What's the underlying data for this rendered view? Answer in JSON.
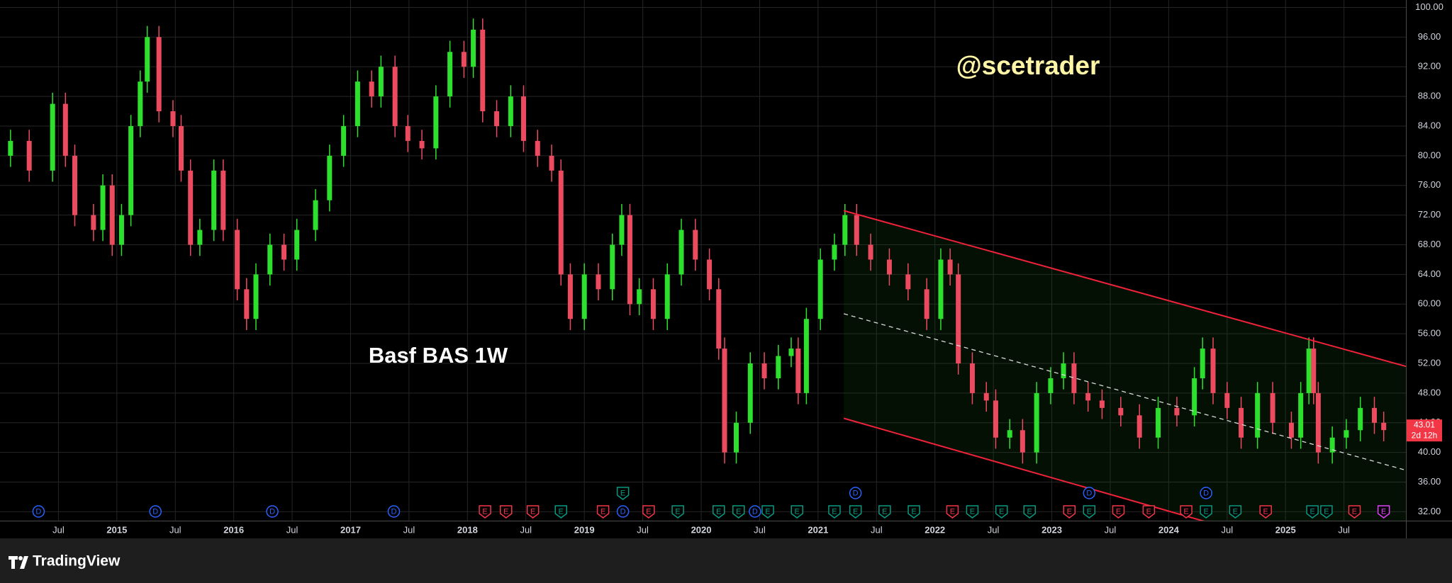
{
  "chart_data": {
    "type": "candlestick",
    "title": "Basf BAS 1W",
    "watermark": "@scetrader",
    "x": [
      2014.09,
      2014.25,
      2014.45,
      2014.56,
      2014.64,
      2014.8,
      2014.88,
      2014.96,
      2015.04,
      2015.12,
      2015.2,
      2015.26,
      2015.36,
      2015.48,
      2015.55,
      2015.63,
      2015.71,
      2015.83,
      2015.91,
      2016.03,
      2016.11,
      2016.19,
      2016.31,
      2016.43,
      2016.54,
      2016.7,
      2016.82,
      2016.94,
      2017.06,
      2017.18,
      2017.26,
      2017.38,
      2017.49,
      2017.61,
      2017.73,
      2017.85,
      2017.97,
      2018.05,
      2018.13,
      2018.25,
      2018.37,
      2018.48,
      2018.6,
      2018.72,
      2018.8,
      2018.88,
      2019.0,
      2019.12,
      2019.24,
      2019.32,
      2019.39,
      2019.47,
      2019.59,
      2019.71,
      2019.83,
      2019.95,
      2020.07,
      2020.15,
      2020.2,
      2020.3,
      2020.42,
      2020.54,
      2020.66,
      2020.77,
      2020.83,
      2020.9,
      2021.02,
      2021.14,
      2021.23,
      2021.33,
      2021.45,
      2021.61,
      2021.77,
      2021.93,
      2022.05,
      2022.13,
      2022.2,
      2022.32,
      2022.44,
      2022.52,
      2022.64,
      2022.75,
      2022.87,
      2022.99,
      2023.1,
      2023.19,
      2023.31,
      2023.43,
      2023.59,
      2023.75,
      2023.91,
      2024.07,
      2024.22,
      2024.29,
      2024.38,
      2024.5,
      2024.62,
      2024.76,
      2024.89,
      2025.05,
      2025.13,
      2025.2,
      2025.24,
      2025.28,
      2025.4,
      2025.52,
      2025.64,
      2025.76,
      2025.84
    ],
    "open": [
      80,
      82,
      78,
      87,
      80,
      72,
      70,
      76,
      68,
      72,
      84,
      90,
      96,
      86,
      84,
      78,
      68,
      70,
      78,
      70,
      62,
      58,
      64,
      68,
      66,
      70,
      74,
      80,
      84,
      90,
      88,
      92,
      84,
      82,
      81,
      88,
      94,
      92,
      97,
      86,
      84,
      88,
      82,
      80,
      78,
      64,
      58,
      64,
      62,
      68,
      72,
      60,
      62,
      58,
      64,
      70,
      66,
      62,
      54,
      40,
      44,
      52,
      50,
      53,
      54,
      48,
      58,
      66,
      68,
      72,
      68,
      66,
      64,
      62,
      58,
      66,
      64,
      52,
      48,
      47,
      42,
      43,
      40,
      48,
      50,
      52,
      48,
      47,
      46,
      45,
      42,
      46,
      45,
      50,
      54,
      48,
      46,
      42,
      48,
      44,
      42,
      48,
      54,
      48,
      40,
      42,
      43,
      46,
      44
    ],
    "high": [
      83.5,
      83.5,
      88.5,
      88.5,
      81.5,
      73.5,
      77.5,
      77.5,
      73.5,
      85.5,
      91.5,
      97.5,
      97.5,
      87.5,
      85.5,
      79.5,
      71.5,
      79.5,
      79.5,
      71.5,
      63.5,
      65.5,
      69.5,
      69.5,
      71.5,
      75.5,
      81.5,
      85.5,
      91.5,
      91.5,
      93.5,
      93.5,
      85.5,
      83.5,
      89.5,
      95.5,
      95.5,
      98.5,
      98.5,
      87.5,
      89.5,
      89.5,
      83.5,
      81.5,
      79.5,
      65.5,
      65.5,
      65.5,
      69.5,
      73.5,
      73.5,
      63.5,
      63.5,
      65.5,
      71.5,
      71.5,
      67.5,
      63.5,
      55.5,
      45.5,
      53.5,
      53.5,
      54.5,
      55.5,
      55.5,
      59.5,
      67.5,
      69.5,
      73.5,
      73.5,
      69.5,
      67.5,
      65.5,
      63.5,
      67.5,
      67.5,
      65.5,
      53.5,
      49.5,
      48.5,
      44.5,
      44.5,
      49.5,
      51.5,
      53.5,
      53.5,
      49.5,
      48.5,
      47.5,
      46.5,
      47.5,
      47.5,
      51.5,
      55.5,
      55.5,
      49.5,
      47.5,
      49.5,
      49.5,
      45.5,
      49.5,
      55.5,
      55.5,
      49.5,
      43.5,
      44.5,
      47.5,
      47.5,
      45.5
    ],
    "low": [
      78.5,
      76.5,
      76.5,
      78.5,
      70.5,
      68.5,
      68.5,
      66.5,
      66.5,
      70.5,
      82.5,
      88.5,
      84.5,
      82.5,
      76.5,
      66.5,
      66.5,
      68.5,
      68.5,
      60.5,
      56.5,
      56.5,
      62.5,
      64.5,
      64.5,
      68.5,
      72.5,
      78.5,
      82.5,
      86.5,
      86.5,
      82.5,
      80.5,
      79.5,
      79.5,
      86.5,
      90.5,
      90.5,
      84.5,
      82.5,
      82.5,
      80.5,
      78.5,
      76.5,
      62.5,
      56.5,
      56.5,
      60.5,
      60.5,
      66.5,
      58.5,
      58.5,
      56.5,
      56.5,
      62.5,
      64.5,
      60.5,
      52.5,
      38.5,
      38.5,
      42.5,
      48.5,
      48.5,
      51.5,
      46.5,
      46.5,
      56.5,
      64.5,
      66.5,
      66.5,
      64.5,
      62.5,
      60.5,
      56.5,
      56.5,
      62.5,
      50.5,
      46.5,
      45.5,
      40.5,
      40.5,
      38.5,
      38.5,
      46.5,
      48.5,
      46.5,
      45.5,
      44.5,
      43.5,
      40.5,
      40.5,
      43.5,
      43.5,
      48.5,
      46.5,
      44.5,
      40.5,
      40.5,
      42.5,
      40.5,
      40.5,
      46.5,
      46.5,
      38.5,
      38.5,
      40.5,
      41.5,
      42.5,
      41.5
    ],
    "close": [
      82,
      78,
      87,
      80,
      72,
      70,
      76,
      68,
      72,
      84,
      90,
      96,
      86,
      84,
      78,
      68,
      70,
      78,
      70,
      62,
      58,
      64,
      68,
      66,
      70,
      74,
      80,
      84,
      90,
      88,
      92,
      84,
      82,
      81,
      88,
      94,
      92,
      97,
      86,
      84,
      88,
      82,
      80,
      78,
      64,
      58,
      64,
      62,
      68,
      72,
      60,
      62,
      58,
      64,
      70,
      66,
      62,
      54,
      40,
      44,
      52,
      50,
      53,
      54,
      48,
      58,
      66,
      68,
      72,
      68,
      66,
      64,
      62,
      58,
      66,
      64,
      52,
      48,
      47,
      42,
      43,
      40,
      48,
      50,
      52,
      48,
      47,
      46,
      45,
      42,
      46,
      45,
      50,
      54,
      48,
      46,
      42,
      48,
      44,
      42,
      48,
      54,
      48,
      40,
      42,
      43,
      46,
      44,
      43.01
    ],
    "up_color": "#2ee02e",
    "down_color": "#ec4a5f",
    "xlim": [
      2014.0,
      2026.03
    ],
    "xticks": [
      {
        "value": 2014.5,
        "label": "Jul"
      },
      2015,
      {
        "value": 2015.5,
        "label": "Jul"
      },
      2016,
      {
        "value": 2016.5,
        "label": "Jul"
      },
      2017,
      {
        "value": 2017.5,
        "label": "Jul"
      },
      2018,
      {
        "value": 2018.5,
        "label": "Jul"
      },
      2019,
      {
        "value": 2019.5,
        "label": "Jul"
      },
      2020,
      {
        "value": 2020.5,
        "label": "Jul"
      },
      2021,
      {
        "value": 2021.5,
        "label": "Jul"
      },
      2022,
      {
        "value": 2022.5,
        "label": "Jul"
      },
      2023,
      {
        "value": 2023.5,
        "label": "Jul"
      },
      2024,
      {
        "value": 2024.5,
        "label": "Jul"
      },
      2025,
      {
        "value": 2025.5,
        "label": "Jul"
      }
    ],
    "ylim": [
      30.8,
      101
    ],
    "yticks": [
      {
        "value": 32,
        "label": "32.00"
      },
      {
        "value": 36,
        "label": "36.00"
      },
      {
        "value": 40,
        "label": "40.00"
      },
      {
        "value": 44,
        "label": "44.00"
      },
      {
        "value": 48,
        "label": "48.00"
      },
      {
        "value": 52,
        "label": "52.00"
      },
      {
        "value": 56,
        "label": "56.00"
      },
      {
        "value": 60,
        "label": "60.00"
      },
      {
        "value": 64,
        "label": "64.00"
      },
      {
        "value": 68,
        "label": "68.00"
      },
      {
        "value": 72,
        "label": "72.00"
      },
      {
        "value": 76,
        "label": "76.00"
      },
      {
        "value": 80,
        "label": "80.00"
      },
      {
        "value": 84,
        "label": "84.00"
      },
      {
        "value": 88,
        "label": "88.00"
      },
      {
        "value": 92,
        "label": "92.00"
      },
      {
        "value": 96,
        "label": "96.00"
      },
      {
        "value": 100,
        "label": "100.00"
      }
    ],
    "grid": true,
    "price_tag": {
      "value": 43.01,
      "countdown": "2d 12h",
      "color": "#f23645"
    },
    "channel": {
      "upper": {
        "x": [
          2021.22,
          2026.03
        ],
        "y": [
          72.6,
          51.6
        ]
      },
      "lower": {
        "x": [
          2021.22,
          2026.03
        ],
        "y": [
          44.6,
          22.95
        ]
      },
      "mid": {
        "x": [
          2021.22,
          2026.03
        ],
        "y": [
          58.7,
          37.6
        ]
      },
      "color": "#f0223a"
    },
    "events": [
      {
        "x": 2014.33,
        "label": "D",
        "color": "#2962ff"
      },
      {
        "x": 2015.33,
        "label": "D",
        "color": "#2962ff"
      },
      {
        "x": 2016.33,
        "label": "D",
        "color": "#2962ff"
      },
      {
        "x": 2017.37,
        "label": "D",
        "color": "#2962ff"
      },
      {
        "x": 2018.15,
        "label": "E",
        "color": "#f23645"
      },
      {
        "x": 2018.33,
        "label": "E",
        "color": "#f23645"
      },
      {
        "x": 2018.56,
        "label": "E",
        "color": "#f23645"
      },
      {
        "x": 2018.8,
        "label": "E",
        "color": "#089981"
      },
      {
        "x": 2019.16,
        "label": "E",
        "color": "#f23645"
      },
      {
        "x": 2019.33,
        "label": "D",
        "color": "#2962ff"
      },
      {
        "x": 2019.33,
        "label": "E",
        "color": "#089981"
      },
      {
        "x": 2019.55,
        "label": "E",
        "color": "#f23645"
      },
      {
        "x": 2019.8,
        "label": "E",
        "color": "#089981"
      },
      {
        "x": 2020.15,
        "label": "E",
        "color": "#089981"
      },
      {
        "x": 2020.32,
        "label": "E",
        "color": "#089981"
      },
      {
        "x": 2020.46,
        "label": "D",
        "color": "#2962ff"
      },
      {
        "x": 2020.57,
        "label": "E",
        "color": "#089981"
      },
      {
        "x": 2020.82,
        "label": "E",
        "color": "#089981"
      },
      {
        "x": 2021.14,
        "label": "E",
        "color": "#089981"
      },
      {
        "x": 2021.32,
        "label": "E",
        "color": "#089981"
      },
      {
        "x": 2021.32,
        "label": "D",
        "color": "#2962ff"
      },
      {
        "x": 2021.57,
        "label": "E",
        "color": "#089981"
      },
      {
        "x": 2021.82,
        "label": "E",
        "color": "#089981"
      },
      {
        "x": 2022.15,
        "label": "E",
        "color": "#f23645"
      },
      {
        "x": 2022.32,
        "label": "E",
        "color": "#089981"
      },
      {
        "x": 2022.57,
        "label": "E",
        "color": "#089981"
      },
      {
        "x": 2022.81,
        "label": "E",
        "color": "#089981"
      },
      {
        "x": 2023.15,
        "label": "E",
        "color": "#f23645"
      },
      {
        "x": 2023.32,
        "label": "E",
        "color": "#089981"
      },
      {
        "x": 2023.32,
        "label": "D",
        "color": "#2962ff"
      },
      {
        "x": 2023.57,
        "label": "E",
        "color": "#f23645"
      },
      {
        "x": 2023.83,
        "label": "E",
        "color": "#f23645"
      },
      {
        "x": 2024.15,
        "label": "E",
        "color": "#f23645"
      },
      {
        "x": 2024.32,
        "label": "E",
        "color": "#089981"
      },
      {
        "x": 2024.32,
        "label": "D",
        "color": "#2962ff"
      },
      {
        "x": 2024.57,
        "label": "E",
        "color": "#089981"
      },
      {
        "x": 2024.83,
        "label": "E",
        "color": "#f23645"
      },
      {
        "x": 2025.23,
        "label": "E",
        "color": "#089981"
      },
      {
        "x": 2025.35,
        "label": "E",
        "color": "#089981"
      },
      {
        "x": 2025.59,
        "label": "E",
        "color": "#f23645"
      },
      {
        "x": 2025.84,
        "label": "E",
        "color": "#e040fb"
      }
    ]
  },
  "branding": {
    "name": "TradingView"
  }
}
